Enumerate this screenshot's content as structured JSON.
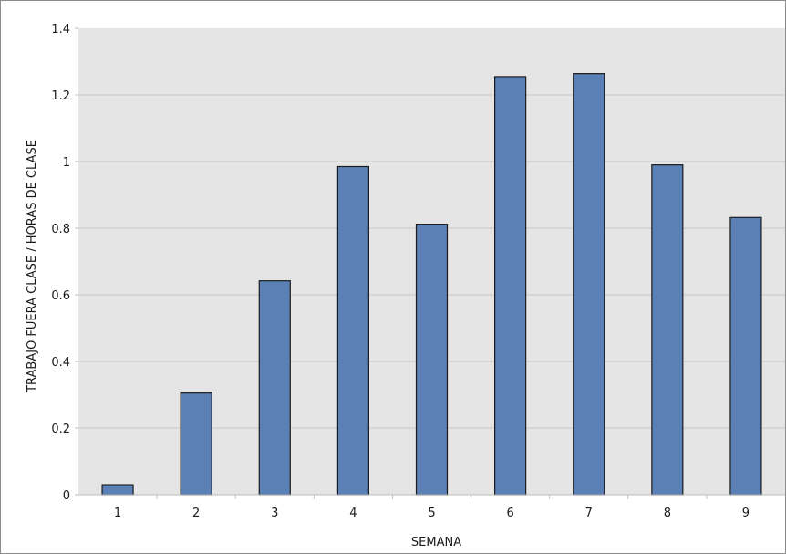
{
  "chart_data": {
    "type": "bar",
    "xlabel": "SEMANA",
    "ylabel": "TRABAJO FUERA CLASE / HORAS DE CLASE",
    "categories": [
      "1",
      "2",
      "3",
      "4",
      "5",
      "6",
      "7",
      "8",
      "9"
    ],
    "values": [
      0.03,
      0.305,
      0.642,
      0.985,
      0.812,
      1.255,
      1.264,
      0.99,
      0.832
    ],
    "ylim": [
      0,
      1.4
    ],
    "yticks": [
      "0",
      "0.2",
      "0.4",
      "0.6",
      "0.8",
      "1",
      "1.2",
      "1.4"
    ],
    "grid": true,
    "legend": "none",
    "colors": {
      "bar": "#5b80b6",
      "bar_stroke": "#1c1c1c",
      "plot_background": "#e5e5e5",
      "gridline": "#c8c8c8"
    }
  }
}
